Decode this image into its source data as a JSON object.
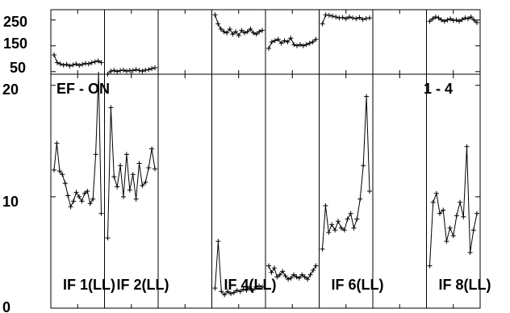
{
  "chart_data": {
    "type": "line",
    "annotations": {
      "left": "EF - ON",
      "right": "1 - 4"
    },
    "top_axis": {
      "ylim": [
        40,
        290
      ],
      "ticks": [
        50,
        150,
        250
      ]
    },
    "bottom_axis": {
      "ylim": [
        0,
        21
      ],
      "ticks": [
        0,
        10,
        20
      ]
    },
    "panels": [
      {
        "label": "IF 1(LL)",
        "top": [
          115,
          85,
          80,
          75,
          78,
          72,
          76,
          80,
          74,
          78,
          82,
          80,
          85,
          88,
          92,
          85
        ],
        "bottom": [
          12.4,
          14.8,
          12.3,
          12.0,
          11.2,
          10.1,
          9.1,
          9.6,
          10.4,
          10.0,
          9.6,
          10.3,
          10.5,
          9.4,
          9.8,
          13.8,
          21.0,
          8.5
        ]
      },
      {
        "label": "IF 2(LL)",
        "top": [
          40,
          52,
          55,
          50,
          54,
          56,
          52,
          55,
          54,
          58,
          55,
          52,
          56,
          58,
          62,
          65
        ],
        "bottom": [
          6.3,
          18.0,
          11.8,
          10.9,
          12.8,
          10.0,
          13.8,
          10.6,
          12.0,
          9.8,
          13.0,
          11.0,
          11.3,
          12.6,
          14.3,
          12.5
        ]
      },
      {
        "label": "",
        "top": [],
        "bottom": []
      },
      {
        "label": "IF 4(LL)",
        "top": [
          270,
          235,
          215,
          205,
          200,
          215,
          195,
          205,
          190,
          210,
          200,
          205,
          215,
          200,
          195,
          205,
          210
        ],
        "bottom": [
          1.8,
          6.0,
          1.5,
          1.2,
          1.5,
          1.3,
          1.4,
          1.6,
          1.5,
          1.7,
          1.6,
          1.8,
          1.6,
          1.9,
          2.0,
          1.9
        ]
      },
      {
        "label": "",
        "top": [
          140,
          165,
          170,
          175,
          160,
          170,
          165,
          180,
          155,
          150,
          155,
          150,
          155,
          160,
          165,
          175
        ],
        "bottom": [
          3.8,
          3.2,
          3.6,
          2.8,
          3.0,
          3.3,
          2.9,
          2.6,
          2.7,
          3.0,
          2.8,
          2.7,
          3.0,
          2.8,
          2.6,
          3.0,
          3.4,
          3.8
        ]
      },
      {
        "label": "IF 6(LL)",
        "top": [
          235,
          270,
          268,
          265,
          262,
          258,
          260,
          255,
          262,
          258,
          255,
          260,
          252,
          256,
          258
        ],
        "bottom": [
          5.3,
          9.2,
          6.8,
          7.5,
          7.0,
          7.8,
          7.2,
          7.0,
          8.0,
          8.5,
          7.2,
          8.0,
          9.8,
          12.8,
          19.0,
          10.5
        ]
      },
      {
        "label": "",
        "top": [],
        "bottom": []
      },
      {
        "label": "IF 8(LL)",
        "top": [
          245,
          255,
          262,
          258,
          250,
          245,
          250,
          255,
          248,
          250,
          245,
          252,
          258,
          255,
          262,
          250,
          240
        ],
        "bottom": [
          3.8,
          9.5,
          10.3,
          8.5,
          8.8,
          6.0,
          7.2,
          6.5,
          8.3,
          9.5,
          8.2,
          14.5,
          5.0,
          7.0,
          8.5
        ]
      }
    ]
  }
}
